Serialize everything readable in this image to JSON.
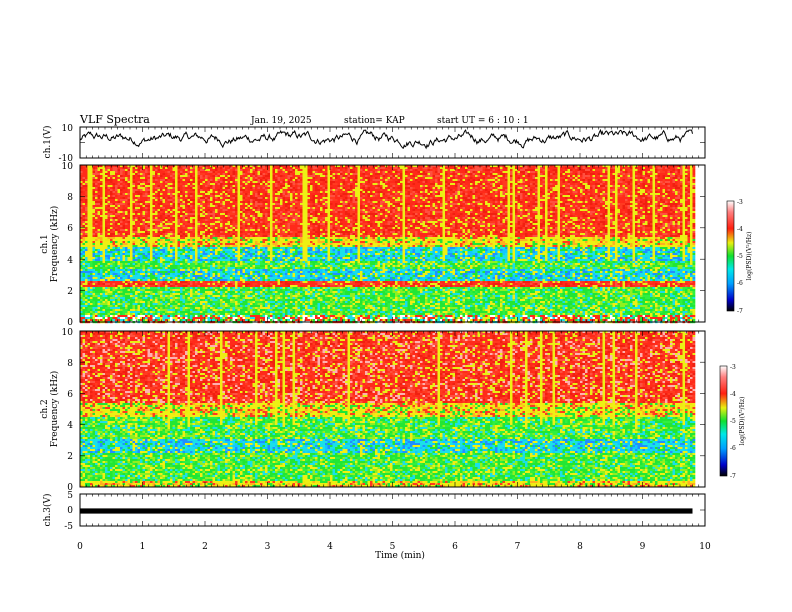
{
  "header": {
    "title": "VLF Spectra",
    "date": "Jan. 19, 2025",
    "station": "station= KAP",
    "start": "start  UT =   6 : 10 : 1"
  },
  "colors": {
    "waveform": "#000000",
    "spectrogram_red": "#ff2a1a",
    "spectrogram_yellow": "#eef014",
    "spectrogram_green": "#22e634",
    "spectrogram_cyan": "#1ae0e8"
  },
  "chart_data": [
    {
      "type": "line",
      "panel": "ch1-waveform",
      "ylabel": "ch.1(V)",
      "yticks": [
        "10",
        "-10"
      ],
      "ylim": [
        -10,
        10
      ],
      "xlim": [
        0,
        10
      ],
      "data_x_max": 9.8,
      "description_trace": "noisy waveform fluctuating mostly between -5 and 8 V"
    },
    {
      "type": "heatmap",
      "panel": "ch1-spectrogram",
      "ylabel_line1": "ch.1",
      "ylabel_line2": "Frequency (kHz)",
      "yticks": [
        "0",
        "2",
        "4",
        "6",
        "8",
        "10"
      ],
      "ylim": [
        0,
        10
      ],
      "xlim": [
        0,
        10
      ],
      "colorbar": {
        "label": "log(PSD)(V²/Hz)",
        "ticks": [
          "-3",
          "-4",
          "-5",
          "-6",
          "-7"
        ],
        "range": [
          -7,
          -3
        ]
      },
      "bands": [
        {
          "from": 0,
          "to": 0.5,
          "level": "mixed"
        },
        {
          "from": 0.5,
          "to": 2.3,
          "level": "green"
        },
        {
          "from": 2.3,
          "to": 2.7,
          "level": "red"
        },
        {
          "from": 2.7,
          "to": 3.5,
          "level": "cyan"
        },
        {
          "from": 3.5,
          "to": 4.0,
          "level": "green"
        },
        {
          "from": 4.0,
          "to": 4.9,
          "level": "cyan"
        },
        {
          "from": 4.9,
          "to": 5.5,
          "level": "yellow"
        },
        {
          "from": 5.5,
          "to": 10,
          "level": "red"
        }
      ]
    },
    {
      "type": "heatmap",
      "panel": "ch2-spectrogram",
      "ylabel_line1": "ch.2",
      "ylabel_line2": "Frequency (kHz)",
      "yticks": [
        "0",
        "2",
        "4",
        "6",
        "8",
        "10"
      ],
      "ylim": [
        0,
        10
      ],
      "xlim": [
        0,
        10
      ],
      "colorbar": {
        "label": "log(PSD)(V²/Hz)",
        "ticks": [
          "-3",
          "-4",
          "-5",
          "-6",
          "-7"
        ],
        "range": [
          -7,
          -3
        ]
      },
      "bands": [
        {
          "from": 0,
          "to": 0.5,
          "level": "yellow"
        },
        {
          "from": 0.5,
          "to": 2.2,
          "level": "green"
        },
        {
          "from": 2.2,
          "to": 3.1,
          "level": "cyan"
        },
        {
          "from": 3.1,
          "to": 4.5,
          "level": "green"
        },
        {
          "from": 4.5,
          "to": 5.5,
          "level": "yellow"
        },
        {
          "from": 5.5,
          "to": 10,
          "level": "red"
        }
      ]
    },
    {
      "type": "line",
      "panel": "ch3-waveform",
      "ylabel": "ch.3(V)",
      "yticks": [
        "5",
        "0",
        "-5"
      ],
      "ylim": [
        -5,
        5
      ],
      "xlim": [
        0,
        10
      ],
      "trace_value": 0,
      "trace_spread": [
        -0.5,
        0.5
      ]
    }
  ],
  "xaxis": {
    "label": "Time (min)",
    "ticks": [
      "0",
      "1",
      "2",
      "3",
      "4",
      "5",
      "6",
      "7",
      "8",
      "9",
      "10"
    ]
  }
}
